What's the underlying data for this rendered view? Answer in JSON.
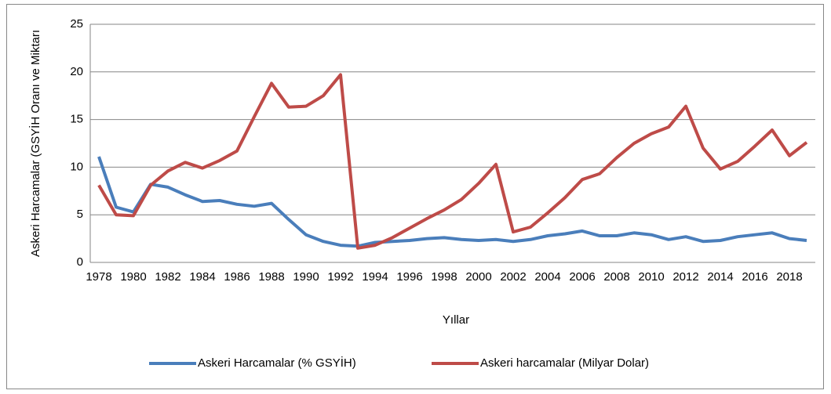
{
  "chart_data": {
    "type": "line",
    "xlabel": "Yıllar",
    "ylabel": "Askeri Harcamalar (GSYİH Oranı ve Miktarı",
    "categories": [
      "1978",
      null,
      "1980",
      null,
      "1982",
      null,
      "1984",
      null,
      "1986",
      null,
      "1988",
      null,
      "1990",
      null,
      "1992",
      null,
      "1994",
      null,
      "1996",
      null,
      "1998",
      null,
      "2000",
      null,
      "2002",
      null,
      "2004",
      null,
      "2006",
      null,
      "2008",
      null,
      "2010",
      null,
      "2012",
      null,
      "2014",
      null,
      "2016",
      null,
      "2018",
      null
    ],
    "series": [
      {
        "name": "Askeri Harcamalar (% GSYİH)",
        "color": "#4a7ebb",
        "values": [
          11.1,
          5.8,
          5.3,
          8.2,
          7.9,
          7.1,
          6.4,
          6.5,
          6.1,
          5.9,
          6.2,
          4.5,
          2.9,
          2.2,
          1.8,
          1.7,
          2.1,
          2.2,
          2.3,
          2.5,
          2.6,
          2.4,
          2.3,
          2.4,
          2.2,
          2.4,
          2.8,
          3.0,
          3.3,
          2.8,
          2.8,
          3.1,
          2.9,
          2.4,
          2.7,
          2.2,
          2.3,
          2.7,
          2.9,
          3.1,
          2.5,
          2.3
        ]
      },
      {
        "name": "Askeri harcamalar (Milyar Dolar)",
        "color": "#be4b48",
        "values": [
          8.1,
          5.0,
          4.9,
          8.1,
          9.6,
          10.5,
          9.9,
          10.7,
          11.7,
          15.3,
          18.8,
          16.3,
          16.4,
          17.5,
          19.7,
          1.5,
          1.8,
          2.6,
          3.6,
          4.6,
          5.5,
          6.6,
          8.3,
          10.3,
          3.2,
          3.7,
          5.2,
          6.8,
          8.7,
          9.3,
          11.0,
          12.5,
          13.5,
          14.2,
          16.4,
          12.0,
          9.8,
          10.6,
          12.2,
          13.9,
          11.2,
          12.6
        ]
      }
    ],
    "ylim": [
      0,
      25
    ],
    "yticks": [
      0,
      5,
      10,
      15,
      20,
      25
    ],
    "grid": true,
    "legend": "bottom"
  }
}
